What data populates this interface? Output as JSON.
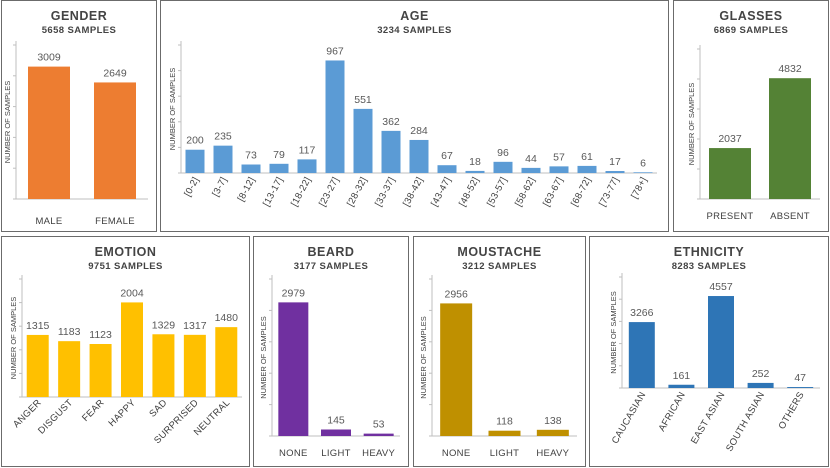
{
  "chart_data": [
    {
      "id": "gender",
      "type": "bar",
      "title": "GENDER",
      "subtitle": "5658 SAMPLES",
      "ylabel": "NUMBER OF SAMPLES",
      "color": "#ED7D31",
      "categories": [
        "MALE",
        "FEMALE"
      ],
      "values": [
        3009,
        2649
      ],
      "ylim": [
        0,
        3500
      ]
    },
    {
      "id": "age",
      "type": "bar",
      "title": "AGE",
      "subtitle": "3234 SAMPLES",
      "ylabel": "NUMBER OF SAMPLES",
      "color": "#5B9BD5",
      "categories": [
        "[0-2]",
        "[3-7]",
        "[8-12]",
        "[13-17]",
        "[18-22]",
        "[23-27]",
        "[28-32]",
        "[33-37]",
        "[38-42]",
        "[43-47]",
        "[48-52]",
        "[53-57]",
        "[58-62]",
        "[63-67]",
        "[68-72]",
        "[73-77]",
        "[78+]"
      ],
      "values": [
        200,
        235,
        73,
        79,
        117,
        967,
        551,
        362,
        284,
        67,
        18,
        96,
        44,
        57,
        61,
        17,
        6
      ],
      "ylim": [
        0,
        1100
      ]
    },
    {
      "id": "glasses",
      "type": "bar",
      "title": "GLASSES",
      "subtitle": "6869 SAMPLES",
      "ylabel": "NUMBER OF SAMPLES",
      "color": "#548235",
      "categories": [
        "PRESENT",
        "ABSENT"
      ],
      "values": [
        2037,
        4832
      ],
      "ylim": [
        0,
        6000
      ]
    },
    {
      "id": "emotion",
      "type": "bar",
      "title": "EMOTION",
      "subtitle": "9751 SAMPLES",
      "ylabel": "NUMBER OF SAMPLES",
      "color": "#FFC000",
      "categories": [
        "ANGER",
        "DISGUST",
        "FEAR",
        "HAPPY",
        "SAD",
        "SURPRISED",
        "NEUTRAL"
      ],
      "values": [
        1315,
        1183,
        1123,
        2004,
        1329,
        1317,
        1480
      ],
      "ylim": [
        0,
        2500
      ]
    },
    {
      "id": "beard",
      "type": "bar",
      "title": "BEARD",
      "subtitle": "3177 SAMPLES",
      "ylabel": "NUMBER OF SAMPLES",
      "color": "#7030A0",
      "categories": [
        "NONE",
        "LIGHT",
        "HEAVY"
      ],
      "values": [
        2979,
        145,
        53
      ],
      "ylim": [
        0,
        3500
      ]
    },
    {
      "id": "moustache",
      "type": "bar",
      "title": "MOUSTACHE",
      "subtitle": "3212 SAMPLES",
      "ylabel": "NUMBER OF SAMPLES",
      "color": "#BF9000",
      "categories": [
        "NONE",
        "LIGHT",
        "HEAVY"
      ],
      "values": [
        2956,
        118,
        138
      ],
      "ylim": [
        0,
        3500
      ]
    },
    {
      "id": "ethnicity",
      "type": "bar",
      "title": "ETHNICITY",
      "subtitle": "8283 SAMPLES",
      "ylabel": "NUMBER OF SAMPLES",
      "color": "#2E75B6",
      "categories": [
        "CAUCASIAN",
        "AFRICAN",
        "EAST ASIAN",
        "SOUTH ASIAN",
        "OTHERS"
      ],
      "values": [
        3266,
        161,
        4557,
        252,
        47
      ],
      "ylim": [
        0,
        5500
      ]
    }
  ]
}
